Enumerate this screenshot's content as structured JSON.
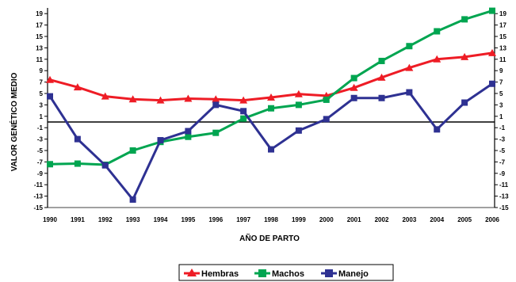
{
  "chart_data": {
    "type": "line",
    "xlabel": "AÑO DE PARTO",
    "ylabel": "VALOR GENÉTICO MEDIO",
    "categories": [
      "1990",
      "1991",
      "1992",
      "1993",
      "1994",
      "1995",
      "1996",
      "1997",
      "1998",
      "1999",
      "2000",
      "2001",
      "2002",
      "2003",
      "2004",
      "2005",
      "2006"
    ],
    "ylim": [
      -15,
      20
    ],
    "y_ticks": [
      19,
      17,
      15,
      13,
      11,
      9,
      7,
      5,
      3,
      1,
      -1,
      -3,
      -5,
      -7,
      -9,
      -11,
      -13,
      -15
    ],
    "grid": false,
    "legend_position": "bottom",
    "series": [
      {
        "name": "Hembras",
        "color": "#ee1c25",
        "marker": "triangle",
        "values": [
          7.4,
          6.1,
          4.5,
          4.0,
          3.8,
          4.1,
          4.0,
          3.8,
          4.3,
          4.9,
          4.6,
          6.0,
          7.8,
          9.5,
          11.0,
          11.4,
          12.1
        ]
      },
      {
        "name": "Machos",
        "color": "#00a550",
        "marker": "square",
        "values": [
          -7.4,
          -7.3,
          -7.5,
          -5.0,
          -3.5,
          -2.6,
          -1.9,
          0.6,
          2.4,
          3.0,
          3.9,
          7.7,
          10.7,
          13.3,
          15.9,
          18.0,
          19.5
        ]
      },
      {
        "name": "Manejo",
        "color": "#2e3192",
        "marker": "square",
        "values": [
          4.5,
          -3.0,
          -7.6,
          -13.6,
          -3.2,
          -1.6,
          3.0,
          1.9,
          -4.8,
          -1.5,
          0.5,
          4.2,
          4.2,
          5.2,
          -1.3,
          3.4,
          6.7
        ]
      }
    ]
  }
}
